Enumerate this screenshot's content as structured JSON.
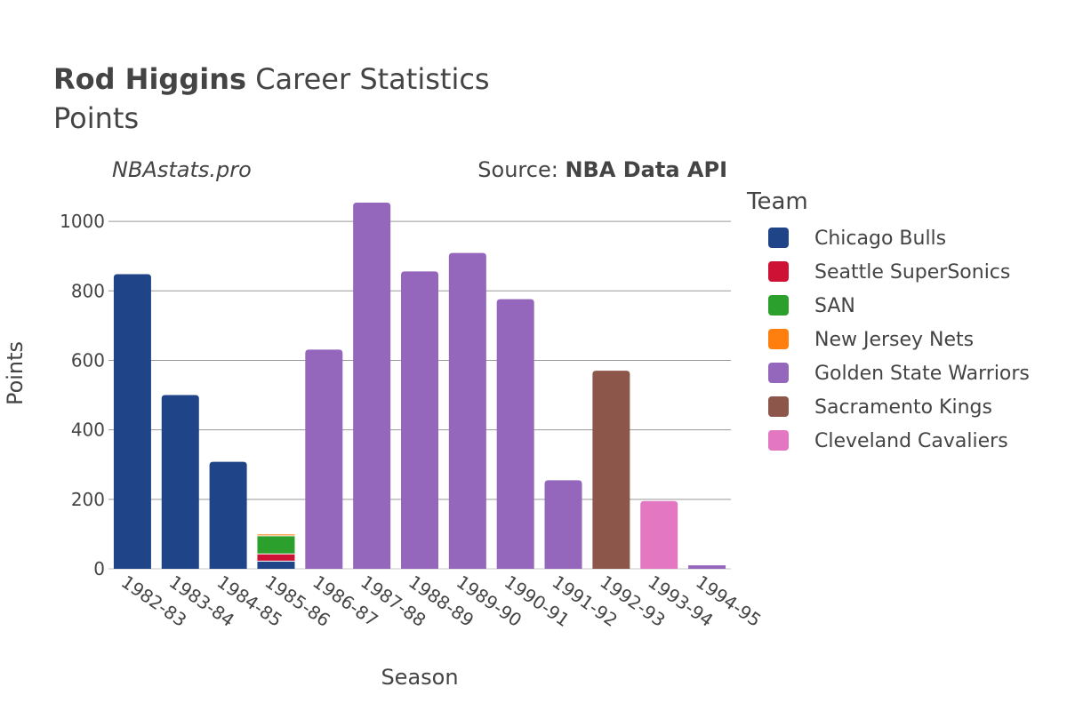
{
  "title": {
    "name": "Rod Higgins",
    "rest": " Career Statistics",
    "subtitle": "Points"
  },
  "watermark": "NBAstats.pro",
  "source": {
    "label": "Source: ",
    "value": "NBA Data API"
  },
  "legend": {
    "title": "Team",
    "placement": "right",
    "items": [
      {
        "label": "Chicago Bulls",
        "color": "#1f4487"
      },
      {
        "label": "Seattle SuperSonics",
        "color": "#ce1235"
      },
      {
        "label": "SAN",
        "color": "#2ca02c"
      },
      {
        "label": "New Jersey Nets",
        "color": "#ff7f0e"
      },
      {
        "label": "Golden State Warriors",
        "color": "#9467bd"
      },
      {
        "label": "Sacramento Kings",
        "color": "#8c564b"
      },
      {
        "label": "Cleveland Cavaliers",
        "color": "#e377c2"
      }
    ]
  },
  "chart_data": {
    "type": "bar",
    "stacked": true,
    "xlabel": "Season",
    "ylabel": "Points",
    "ylim": [
      0,
      1100
    ],
    "yticks": [
      0,
      200,
      400,
      600,
      800,
      1000
    ],
    "grid": true,
    "categories": [
      "1982-83",
      "1983-84",
      "1984-85",
      "1985-86",
      "1986-87",
      "1987-88",
      "1988-89",
      "1989-90",
      "1990-91",
      "1991-92",
      "1992-93",
      "1993-94",
      "1994-95"
    ],
    "series": [
      {
        "name": "Chicago Bulls",
        "color": "#1f4487",
        "values": [
          848,
          500,
          308,
          22,
          0,
          0,
          0,
          0,
          0,
          0,
          0,
          0,
          0
        ]
      },
      {
        "name": "Seattle SuperSonics",
        "color": "#ce1235",
        "values": [
          0,
          0,
          0,
          21,
          0,
          0,
          0,
          0,
          0,
          0,
          0,
          0,
          0
        ]
      },
      {
        "name": "SAN",
        "color": "#2ca02c",
        "values": [
          0,
          0,
          0,
          52,
          0,
          0,
          0,
          0,
          0,
          0,
          0,
          0,
          0
        ]
      },
      {
        "name": "New Jersey Nets",
        "color": "#ff7f0e",
        "values": [
          0,
          0,
          0,
          4,
          0,
          0,
          0,
          0,
          0,
          0,
          0,
          0,
          0
        ]
      },
      {
        "name": "Golden State Warriors",
        "color": "#9467bd",
        "values": [
          0,
          0,
          0,
          0,
          631,
          1054,
          856,
          909,
          776,
          255,
          0,
          0,
          10
        ]
      },
      {
        "name": "Sacramento Kings",
        "color": "#8c564b",
        "values": [
          0,
          0,
          0,
          0,
          0,
          0,
          0,
          0,
          0,
          0,
          570,
          0,
          0
        ]
      },
      {
        "name": "Cleveland Cavaliers",
        "color": "#e377c2",
        "values": [
          0,
          0,
          0,
          0,
          0,
          0,
          0,
          0,
          0,
          0,
          0,
          195,
          0
        ]
      }
    ]
  }
}
